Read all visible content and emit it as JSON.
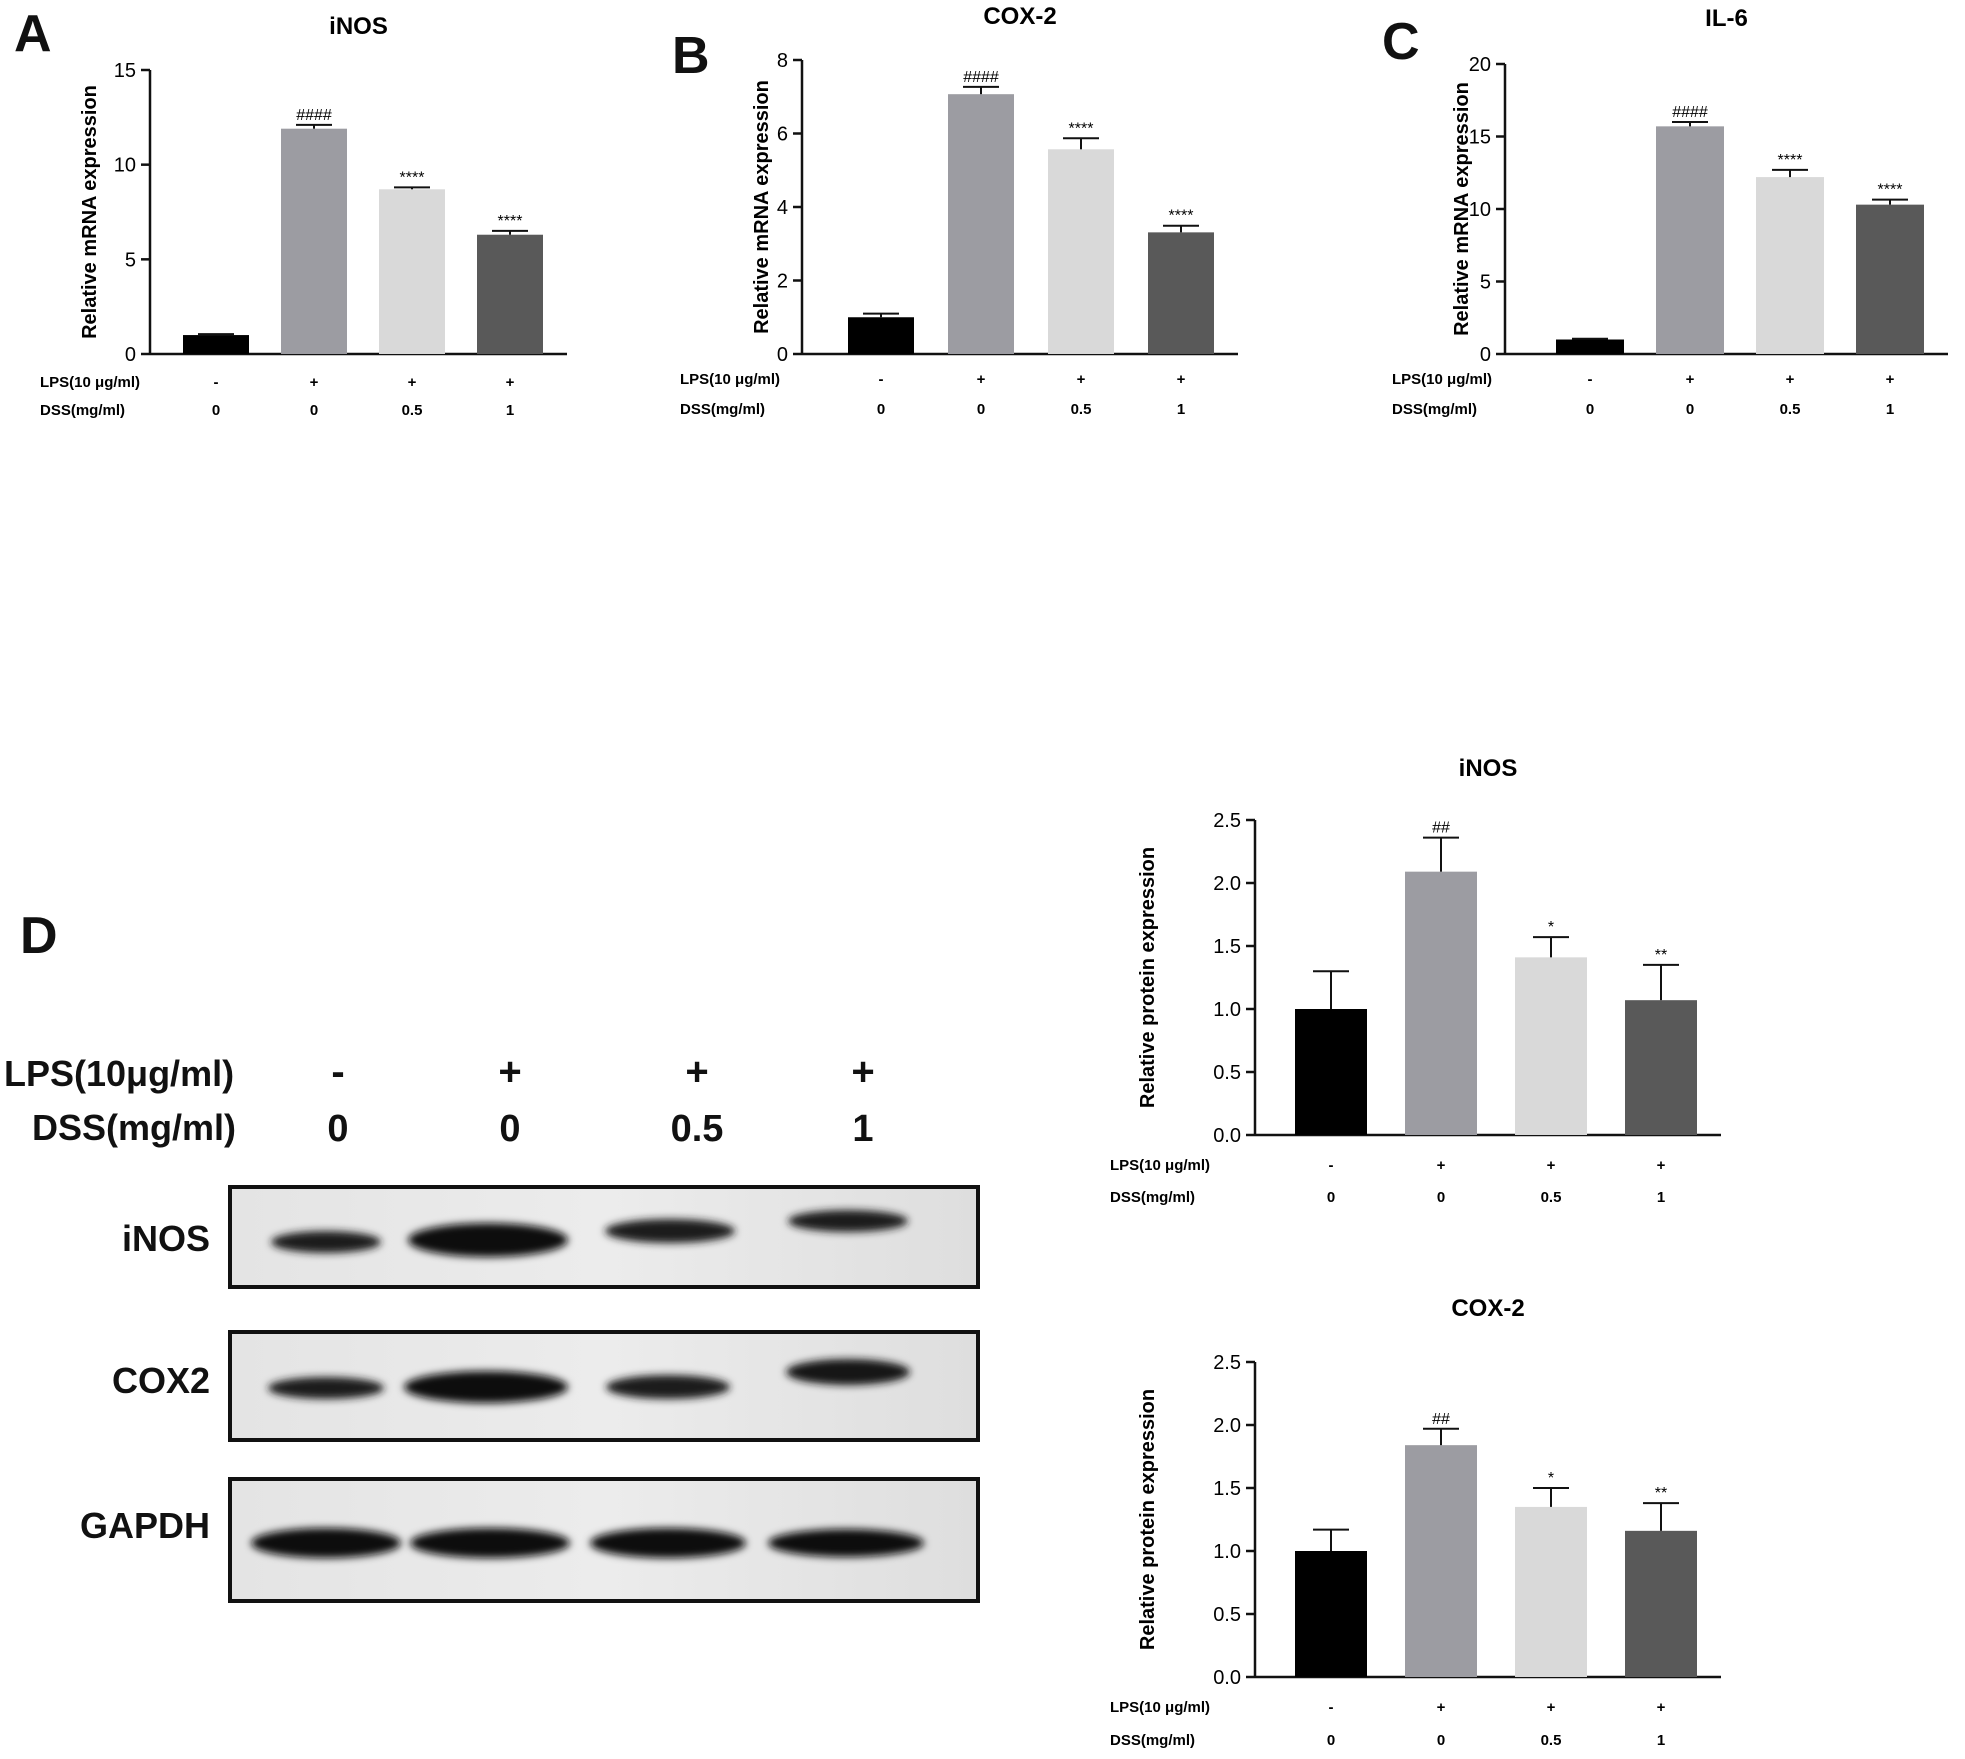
{
  "panel_letters": {
    "a": "A",
    "b": "B",
    "c": "C",
    "d": "D"
  },
  "colors": [
    "#000000",
    "#9c9ca2",
    "#d9d9d9",
    "#595959"
  ],
  "chart_data": [
    {
      "id": "A",
      "type": "bar",
      "title": "iNOS",
      "ylabel": "Relative mRNA expression",
      "ylim": [
        0,
        15
      ],
      "yticks": [
        "0",
        "5",
        "10",
        "15"
      ],
      "ytick_values": [
        0,
        5,
        10,
        15
      ],
      "values": [
        1.0,
        11.9,
        8.7,
        6.3
      ],
      "errors": [
        0.05,
        0.2,
        0.1,
        0.2
      ],
      "annotations": [
        "",
        "####",
        "****",
        "****"
      ],
      "conditions": [
        {
          "label": "LPS(10 μg/ml)",
          "values": [
            "-",
            "+",
            "+",
            "+"
          ]
        },
        {
          "label": "DSS(mg/ml)",
          "values": [
            "0",
            "0",
            "0.5",
            "1"
          ]
        }
      ]
    },
    {
      "id": "B",
      "type": "bar",
      "title": "COX-2",
      "ylabel": "Relative mRNA expression",
      "ylim": [
        0,
        8
      ],
      "yticks": [
        "0",
        "2",
        "4",
        "6",
        "8"
      ],
      "ytick_values": [
        0,
        2,
        4,
        6,
        8
      ],
      "values": [
        1.0,
        7.07,
        5.57,
        3.31
      ],
      "errors": [
        0.1,
        0.2,
        0.3,
        0.18
      ],
      "annotations": [
        "",
        "####",
        "****",
        "****"
      ],
      "conditions": [
        {
          "label": "LPS(10 μg/ml)",
          "values": [
            "-",
            "+",
            "+",
            "+"
          ]
        },
        {
          "label": "DSS(mg/ml)",
          "values": [
            "0",
            "0",
            "0.5",
            "1"
          ]
        }
      ]
    },
    {
      "id": "C",
      "type": "bar",
      "title": "IL-6",
      "ylabel": "Relative mRNA expression",
      "ylim": [
        0,
        20
      ],
      "yticks": [
        "0",
        "5",
        "10",
        "15",
        "20"
      ],
      "ytick_values": [
        0,
        5,
        10,
        15,
        20
      ],
      "values": [
        1.0,
        15.7,
        12.2,
        10.3
      ],
      "errors": [
        0.05,
        0.3,
        0.5,
        0.35
      ],
      "annotations": [
        "",
        "####",
        "****",
        "****"
      ],
      "conditions": [
        {
          "label": "LPS(10 μg/ml)",
          "values": [
            "-",
            "+",
            "+",
            "+"
          ]
        },
        {
          "label": "DSS(mg/ml)",
          "values": [
            "0",
            "0",
            "0.5",
            "1"
          ]
        }
      ]
    },
    {
      "id": "D-iNOS",
      "type": "bar",
      "title": "iNOS",
      "ylabel": "Relative protein expression",
      "ylim": [
        0,
        2.5
      ],
      "yticks": [
        "0.0",
        "0.5",
        "1.0",
        "1.5",
        "2.0",
        "2.5"
      ],
      "ytick_values": [
        0,
        0.5,
        1,
        1.5,
        2,
        2.5
      ],
      "values": [
        1.0,
        2.09,
        1.41,
        1.07
      ],
      "errors": [
        0.3,
        0.27,
        0.16,
        0.28
      ],
      "annotations": [
        "",
        "##",
        "*",
        "**"
      ],
      "conditions": [
        {
          "label": "LPS(10 μg/ml)",
          "values": [
            "-",
            "+",
            "+",
            "+"
          ]
        },
        {
          "label": "DSS(mg/ml)",
          "values": [
            "0",
            "0",
            "0.5",
            "1"
          ]
        }
      ]
    },
    {
      "id": "D-COX-2",
      "type": "bar",
      "title": "COX-2",
      "ylabel": "Relative protein expression",
      "ylim": [
        0,
        2.5
      ],
      "yticks": [
        "0.0",
        "0.5",
        "1.0",
        "1.5",
        "2.0",
        "2.5"
      ],
      "ytick_values": [
        0,
        0.5,
        1,
        1.5,
        2,
        2.5
      ],
      "values": [
        1.0,
        1.84,
        1.35,
        1.16
      ],
      "errors": [
        0.17,
        0.13,
        0.15,
        0.22
      ],
      "annotations": [
        "",
        "##",
        "*",
        "**"
      ],
      "conditions": [
        {
          "label": "LPS(10 μg/ml)",
          "values": [
            "-",
            "+",
            "+",
            "+"
          ]
        },
        {
          "label": "DSS(mg/ml)",
          "values": [
            "0",
            "0",
            "0.5",
            "1"
          ]
        }
      ]
    }
  ],
  "blot": {
    "conditions": [
      {
        "label": "LPS(10μg/ml)",
        "values": [
          "-",
          "+",
          "+",
          "+"
        ]
      },
      {
        "label": "DSS(mg/ml)",
        "values": [
          "0",
          "0",
          "0.5",
          "1"
        ]
      }
    ],
    "rows": [
      {
        "label": "iNOS",
        "band_intensity": [
          0.55,
          1.0,
          0.65,
          0.5
        ]
      },
      {
        "label": "COX2",
        "band_intensity": [
          0.55,
          1.0,
          0.6,
          0.6
        ]
      },
      {
        "label": "GAPDH",
        "band_intensity": [
          1.0,
          1.0,
          1.0,
          1.0
        ]
      }
    ]
  }
}
